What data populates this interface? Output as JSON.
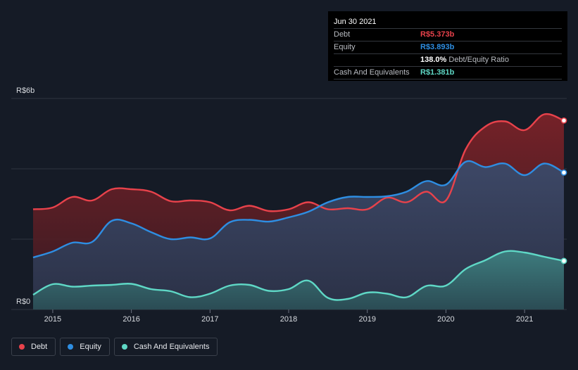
{
  "chart_data": {
    "type": "area",
    "y_axis_labels": [
      "R$6b",
      "R$0"
    ],
    "ylim": [
      0,
      6
    ],
    "y_unit": "R$ billions",
    "grid": true,
    "x_tick_labels": [
      "2015",
      "2016",
      "2017",
      "2018",
      "2019",
      "2020",
      "2021"
    ],
    "x": [
      2014.75,
      2015.0,
      2015.25,
      2015.5,
      2015.75,
      2016.0,
      2016.25,
      2016.5,
      2016.75,
      2017.0,
      2017.25,
      2017.5,
      2017.75,
      2018.0,
      2018.25,
      2018.5,
      2018.75,
      2019.0,
      2019.25,
      2019.5,
      2019.75,
      2020.0,
      2020.25,
      2020.5,
      2020.75,
      2021.0,
      2021.25,
      2021.5
    ],
    "series": [
      {
        "name": "Debt",
        "color": "#e8424b",
        "values": [
          2.85,
          2.9,
          3.2,
          3.1,
          3.42,
          3.42,
          3.35,
          3.08,
          3.1,
          3.05,
          2.82,
          2.95,
          2.8,
          2.85,
          3.05,
          2.85,
          2.88,
          2.85,
          3.18,
          3.05,
          3.35,
          3.1,
          4.55,
          5.2,
          5.35,
          5.1,
          5.55,
          5.373
        ]
      },
      {
        "name": "Equity",
        "color": "#2e8ee2",
        "values": [
          1.48,
          1.65,
          1.9,
          1.92,
          2.52,
          2.45,
          2.2,
          2.0,
          2.05,
          2.02,
          2.48,
          2.55,
          2.5,
          2.62,
          2.78,
          3.05,
          3.2,
          3.2,
          3.22,
          3.35,
          3.65,
          3.55,
          4.2,
          4.05,
          4.15,
          3.82,
          4.15,
          3.893
        ]
      },
      {
        "name": "Cash And Equivalents",
        "color": "#5fd8c6",
        "values": [
          0.42,
          0.72,
          0.65,
          0.68,
          0.7,
          0.73,
          0.58,
          0.52,
          0.35,
          0.45,
          0.68,
          0.7,
          0.53,
          0.58,
          0.82,
          0.33,
          0.3,
          0.48,
          0.45,
          0.35,
          0.67,
          0.68,
          1.15,
          1.4,
          1.65,
          1.62,
          1.5,
          1.381
        ]
      }
    ]
  },
  "tooltip": {
    "date": "Jun 30 2021",
    "rows": [
      {
        "label": "Debt",
        "value": "R$5.373b",
        "color": "#e8424b"
      },
      {
        "label": "Equity",
        "value": "R$3.893b",
        "color": "#2e8ee2"
      },
      {
        "ratio_value": "138.0%",
        "ratio_text": "Debt/Equity Ratio"
      },
      {
        "label": "Cash And Equivalents",
        "value": "R$1.381b",
        "color": "#5fd8c6"
      }
    ]
  },
  "legend": [
    {
      "label": "Debt",
      "color": "#e8424b"
    },
    {
      "label": "Equity",
      "color": "#2e8ee2"
    },
    {
      "label": "Cash And Equivalents",
      "color": "#5fd8c6"
    }
  ]
}
